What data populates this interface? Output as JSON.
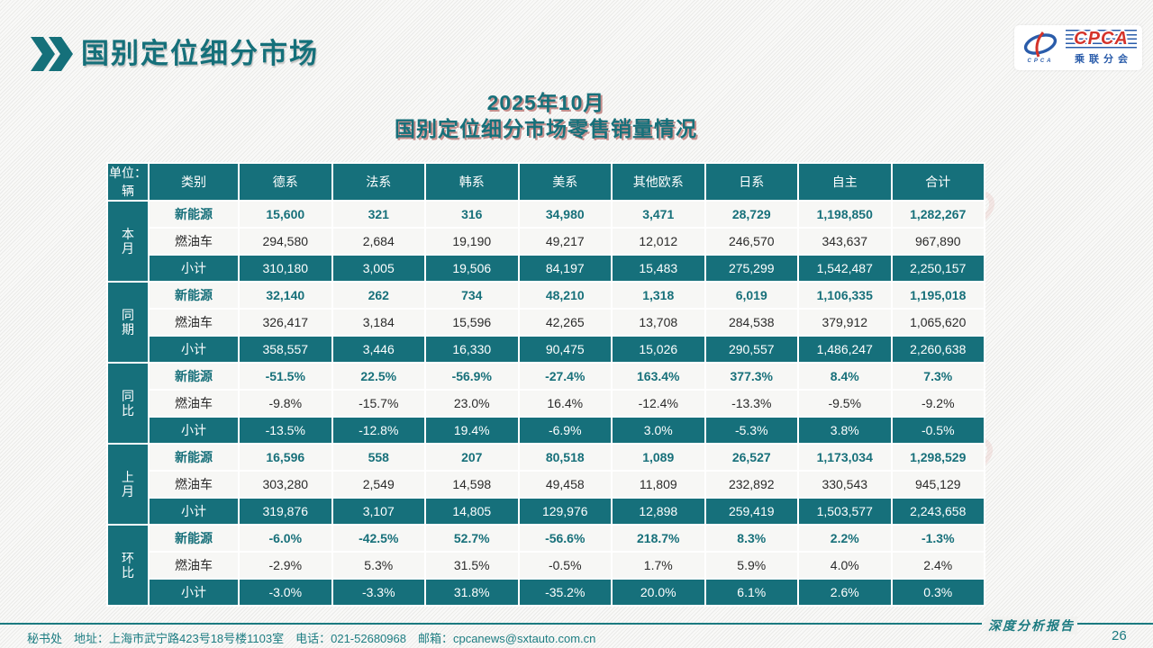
{
  "page": {
    "title": "国别定位细分市场",
    "subtitle_line1": "2025年10月",
    "subtitle_line2": "国别定位细分市场零售销量情况",
    "unit_label": "单位：辆",
    "colors": {
      "teal": "#16707B",
      "subtitle_shadow_red": "#963A30",
      "ev_value_text": "#17707A",
      "logo_blue": "#2A5CAA",
      "logo_red": "#D4332A"
    }
  },
  "logo": {
    "emblem_sub": "CPCA",
    "cpca": "CPCA",
    "cn": "乘联分会"
  },
  "footer": {
    "left": "秘书处　地址：上海市武宁路423号18号楼1103室　电话：021-52680968　邮箱：cpcanews@sxtauto.com.cn",
    "report_label": "深度分析报告",
    "page_number": "26"
  },
  "chart_data": {
    "type": "table",
    "title": "2025年10月 国别定位细分市场零售销量情况",
    "unit": "单位：辆",
    "columns": [
      "类别",
      "德系",
      "法系",
      "韩系",
      "美系",
      "其他欧系",
      "日系",
      "自主",
      "合计"
    ],
    "row_groups": [
      {
        "label": "本月",
        "rows": [
          {
            "name": "新能源",
            "style": "ev",
            "values": [
              "15,600",
              "321",
              "316",
              "34,980",
              "3,471",
              "28,729",
              "1,198,850",
              "1,282,267"
            ]
          },
          {
            "name": "燃油车",
            "style": "ice",
            "values": [
              "294,580",
              "2,684",
              "19,190",
              "49,217",
              "12,012",
              "246,570",
              "343,637",
              "967,890"
            ]
          },
          {
            "name": "小计",
            "style": "subtotal",
            "values": [
              "310,180",
              "3,005",
              "19,506",
              "84,197",
              "15,483",
              "275,299",
              "1,542,487",
              "2,250,157"
            ]
          }
        ]
      },
      {
        "label": "同期",
        "rows": [
          {
            "name": "新能源",
            "style": "ev",
            "values": [
              "32,140",
              "262",
              "734",
              "48,210",
              "1,318",
              "6,019",
              "1,106,335",
              "1,195,018"
            ]
          },
          {
            "name": "燃油车",
            "style": "ice",
            "values": [
              "326,417",
              "3,184",
              "15,596",
              "42,265",
              "13,708",
              "284,538",
              "379,912",
              "1,065,620"
            ]
          },
          {
            "name": "小计",
            "style": "subtotal",
            "values": [
              "358,557",
              "3,446",
              "16,330",
              "90,475",
              "15,026",
              "290,557",
              "1,486,247",
              "2,260,638"
            ]
          }
        ]
      },
      {
        "label": "同比",
        "rows": [
          {
            "name": "新能源",
            "style": "ev",
            "values": [
              "-51.5%",
              "22.5%",
              "-56.9%",
              "-27.4%",
              "163.4%",
              "377.3%",
              "8.4%",
              "7.3%"
            ]
          },
          {
            "name": "燃油车",
            "style": "ice",
            "values": [
              "-9.8%",
              "-15.7%",
              "23.0%",
              "16.4%",
              "-12.4%",
              "-13.3%",
              "-9.5%",
              "-9.2%"
            ]
          },
          {
            "name": "小计",
            "style": "subtotal",
            "values": [
              "-13.5%",
              "-12.8%",
              "19.4%",
              "-6.9%",
              "3.0%",
              "-5.3%",
              "3.8%",
              "-0.5%"
            ]
          }
        ]
      },
      {
        "label": "上月",
        "rows": [
          {
            "name": "新能源",
            "style": "ev",
            "values": [
              "16,596",
              "558",
              "207",
              "80,518",
              "1,089",
              "26,527",
              "1,173,034",
              "1,298,529"
            ]
          },
          {
            "name": "燃油车",
            "style": "ice",
            "values": [
              "303,280",
              "2,549",
              "14,598",
              "49,458",
              "11,809",
              "232,892",
              "330,543",
              "945,129"
            ]
          },
          {
            "name": "小计",
            "style": "subtotal",
            "values": [
              "319,876",
              "3,107",
              "14,805",
              "129,976",
              "12,898",
              "259,419",
              "1,503,577",
              "2,243,658"
            ]
          }
        ]
      },
      {
        "label": "环比",
        "rows": [
          {
            "name": "新能源",
            "style": "ev",
            "values": [
              "-6.0%",
              "-42.5%",
              "52.7%",
              "-56.6%",
              "218.7%",
              "8.3%",
              "2.2%",
              "-1.3%"
            ]
          },
          {
            "name": "燃油车",
            "style": "ice",
            "values": [
              "-2.9%",
              "5.3%",
              "31.5%",
              "-0.5%",
              "1.7%",
              "5.9%",
              "4.0%",
              "2.4%"
            ]
          },
          {
            "name": "小计",
            "style": "subtotal",
            "values": [
              "-3.0%",
              "-3.3%",
              "31.8%",
              "-35.2%",
              "20.0%",
              "6.1%",
              "2.6%",
              "0.3%"
            ]
          }
        ]
      }
    ]
  }
}
